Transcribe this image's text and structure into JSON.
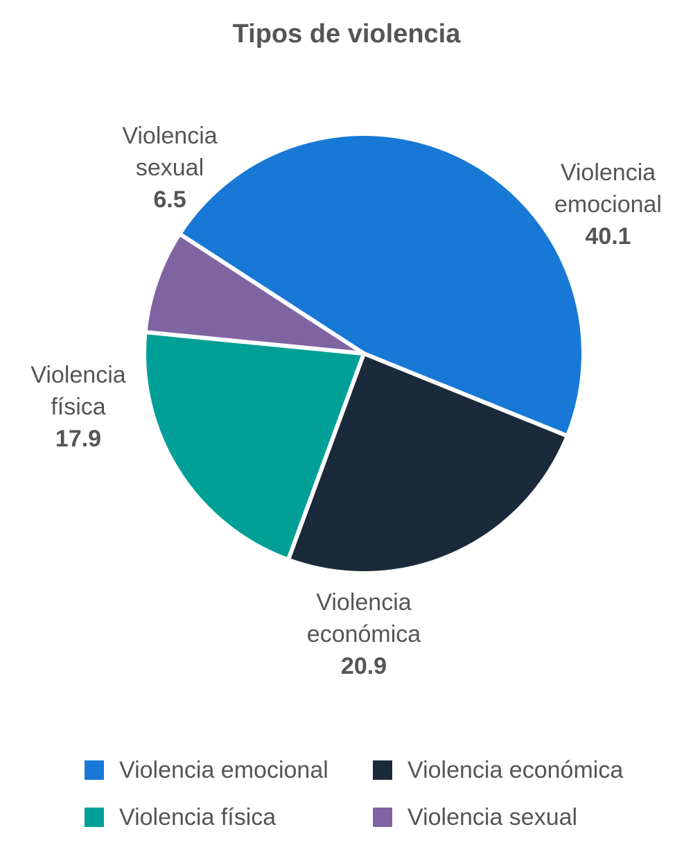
{
  "chart_data": {
    "type": "pie",
    "title": "Tipos de violencia",
    "slices": [
      {
        "label_lines": [
          "Violencia",
          "emocional"
        ],
        "name": "Violencia emocional",
        "value": 40.1,
        "value_text": "40.1",
        "color": "#1878d6"
      },
      {
        "label_lines": [
          "Violencia",
          "económica"
        ],
        "name": "Violencia económica",
        "value": 20.9,
        "value_text": "20.9",
        "color": "#1b2a3b"
      },
      {
        "label_lines": [
          "Violencia",
          "física"
        ],
        "name": "Violencia física",
        "value": 17.9,
        "value_text": "17.9",
        "color": "#00a096"
      },
      {
        "label_lines": [
          "Violencia",
          "sexual"
        ],
        "name": "Violencia sexual",
        "value": 6.5,
        "value_text": "6.5",
        "color": "#8064a2"
      }
    ],
    "legend": [
      "Violencia emocional",
      "Violencia económica",
      "Violencia física",
      "Violencia sexual"
    ],
    "legend_placement": "bottom"
  }
}
